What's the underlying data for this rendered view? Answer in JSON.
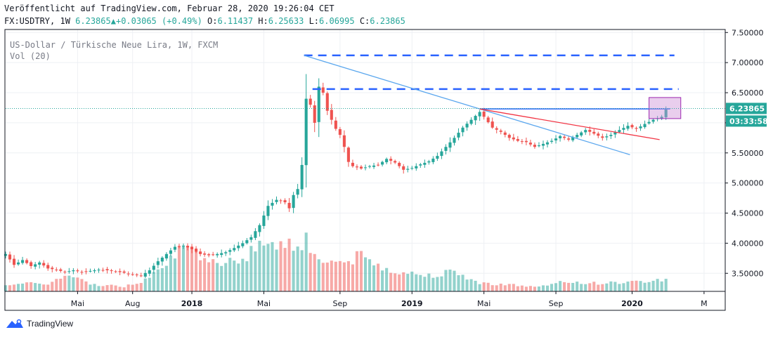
{
  "header": {
    "published": "Veröffentlicht auf TradingView.com, Februar 28, 2020 19:26:04 CET",
    "symbol": "FX:USDTRY, 1W",
    "last": "6.23865",
    "arrow": "▲",
    "change": "+0.03065 (+0.49%)",
    "o_label": "O:",
    "o": "6.11437",
    "h_label": "H:",
    "h": "6.25633",
    "l_label": "L:",
    "l": "6.06995",
    "c_label": "C:",
    "c": "6.23865"
  },
  "legend": {
    "title": "US-Dollar / Türkische Neue Lira, 1W, FXCM",
    "vol": "Vol (20)"
  },
  "price_label": "6.23865",
  "countdown": "03:33:58",
  "brand": "TradingView",
  "colors": {
    "up": "#26a69a",
    "down": "#ef5350",
    "blue": "#2962ff",
    "trend": "#5ba7ee",
    "red": "#f23645",
    "box": "#ce93d8"
  },
  "chart_data": {
    "type": "candlestick",
    "title": "US-Dollar / Türkische Neue Lira, 1W, FXCM",
    "yticks": [
      3.5,
      4.0,
      4.5,
      5.0,
      5.5,
      6.0,
      6.5,
      7.0,
      7.5
    ],
    "ytick_labels": [
      "3.50000",
      "4.00000",
      "4.50000",
      "5.00000",
      "5.50000",
      "6.00000",
      "6.50000",
      "7.00000",
      "7.50000"
    ],
    "xticks": [
      {
        "label": "Mai",
        "t": 17
      },
      {
        "label": "Aug",
        "t": 30
      },
      {
        "label": "2018",
        "t": 44
      },
      {
        "label": "Mai",
        "t": 61
      },
      {
        "label": "Sep",
        "t": 79
      },
      {
        "label": "2019",
        "t": 96
      },
      {
        "label": "Mai",
        "t": 113
      },
      {
        "label": "Sep",
        "t": 130
      },
      {
        "label": "2020",
        "t": 148
      },
      {
        "label": "M",
        "t": 165
      }
    ],
    "anchors": [
      [
        0,
        3.82
      ],
      [
        2,
        3.64
      ],
      [
        4,
        3.72
      ],
      [
        6,
        3.62
      ],
      [
        8,
        3.68
      ],
      [
        10,
        3.58
      ],
      [
        12,
        3.56
      ],
      [
        14,
        3.52
      ],
      [
        16,
        3.55
      ],
      [
        18,
        3.52
      ],
      [
        20,
        3.54
      ],
      [
        22,
        3.56
      ],
      [
        24,
        3.55
      ],
      [
        26,
        3.53
      ],
      [
        28,
        3.51
      ],
      [
        30,
        3.48
      ],
      [
        32,
        3.46
      ],
      [
        34,
        3.55
      ],
      [
        36,
        3.7
      ],
      [
        38,
        3.82
      ],
      [
        40,
        3.94
      ],
      [
        42,
        3.96
      ],
      [
        44,
        3.9
      ],
      [
        46,
        3.82
      ],
      [
        48,
        3.8
      ],
      [
        50,
        3.82
      ],
      [
        52,
        3.85
      ],
      [
        54,
        3.92
      ],
      [
        56,
        4.0
      ],
      [
        58,
        4.1
      ],
      [
        60,
        4.3
      ],
      [
        62,
        4.62
      ],
      [
        64,
        4.72
      ],
      [
        65,
        4.7
      ],
      [
        66,
        4.68
      ],
      [
        67,
        4.58
      ],
      [
        68,
        4.8
      ],
      [
        69,
        4.9
      ],
      [
        70,
        5.3
      ],
      [
        71,
        6.4
      ],
      [
        72,
        6.3
      ],
      [
        73,
        6.0
      ],
      [
        74,
        6.6
      ],
      [
        75,
        6.5
      ],
      [
        76,
        6.2
      ],
      [
        77,
        6.05
      ],
      [
        78,
        5.9
      ],
      [
        79,
        5.8
      ],
      [
        80,
        5.6
      ],
      [
        81,
        5.35
      ],
      [
        82,
        5.28
      ],
      [
        84,
        5.24
      ],
      [
        86,
        5.28
      ],
      [
        88,
        5.3
      ],
      [
        90,
        5.4
      ],
      [
        92,
        5.34
      ],
      [
        94,
        5.22
      ],
      [
        96,
        5.25
      ],
      [
        98,
        5.31
      ],
      [
        100,
        5.36
      ],
      [
        102,
        5.45
      ],
      [
        104,
        5.6
      ],
      [
        106,
        5.75
      ],
      [
        108,
        5.92
      ],
      [
        110,
        6.05
      ],
      [
        112,
        6.18
      ],
      [
        113,
        6.1
      ],
      [
        115,
        5.92
      ],
      [
        117,
        5.85
      ],
      [
        119,
        5.75
      ],
      [
        121,
        5.7
      ],
      [
        123,
        5.68
      ],
      [
        125,
        5.6
      ],
      [
        127,
        5.65
      ],
      [
        129,
        5.7
      ],
      [
        131,
        5.78
      ],
      [
        133,
        5.72
      ],
      [
        135,
        5.8
      ],
      [
        137,
        5.88
      ],
      [
        139,
        5.82
      ],
      [
        141,
        5.75
      ],
      [
        143,
        5.8
      ],
      [
        145,
        5.88
      ],
      [
        147,
        5.95
      ],
      [
        149,
        5.9
      ],
      [
        151,
        5.98
      ],
      [
        153,
        6.05
      ],
      [
        155,
        6.1
      ],
      [
        156,
        6.22
      ]
    ],
    "volume_anchors": [
      [
        0,
        0.09
      ],
      [
        10,
        0.1
      ],
      [
        15,
        0.2
      ],
      [
        20,
        0.09
      ],
      [
        28,
        0.06
      ],
      [
        32,
        0.12
      ],
      [
        36,
        0.3
      ],
      [
        40,
        0.48
      ],
      [
        44,
        0.5
      ],
      [
        46,
        0.35
      ],
      [
        50,
        0.38
      ],
      [
        56,
        0.42
      ],
      [
        60,
        0.55
      ],
      [
        62,
        0.66
      ],
      [
        66,
        0.58
      ],
      [
        70,
        0.6
      ],
      [
        71,
        0.72
      ],
      [
        73,
        0.42
      ],
      [
        76,
        0.38
      ],
      [
        80,
        0.36
      ],
      [
        84,
        0.44
      ],
      [
        88,
        0.32
      ],
      [
        92,
        0.26
      ],
      [
        96,
        0.22
      ],
      [
        100,
        0.2
      ],
      [
        104,
        0.24
      ],
      [
        108,
        0.2
      ],
      [
        112,
        0.1
      ],
      [
        118,
        0.09
      ],
      [
        124,
        0.06
      ],
      [
        128,
        0.07
      ],
      [
        132,
        0.12
      ],
      [
        140,
        0.1
      ],
      [
        150,
        0.12
      ],
      [
        156,
        0.15
      ]
    ],
    "hlines": [
      {
        "y": 7.12,
        "t1": 70.5,
        "t2": 158,
        "style": "dashed"
      },
      {
        "y": 6.56,
        "t1": 72.5,
        "t2": 159,
        "style": "dashed"
      },
      {
        "y": 6.23,
        "t1": 112,
        "t2": 157,
        "style": "solid"
      }
    ],
    "trendlines": [
      {
        "t1": 70.5,
        "y1": 7.12,
        "t2": 147.5,
        "y2": 5.47,
        "color": "trend"
      },
      {
        "t1": 112,
        "y1": 6.23,
        "t2": 154.5,
        "y2": 5.72,
        "color": "red"
      }
    ],
    "box": {
      "t1": 152,
      "t2": 159.5,
      "y1": 6.07,
      "y2": 6.42
    },
    "last": 6.23865
  }
}
